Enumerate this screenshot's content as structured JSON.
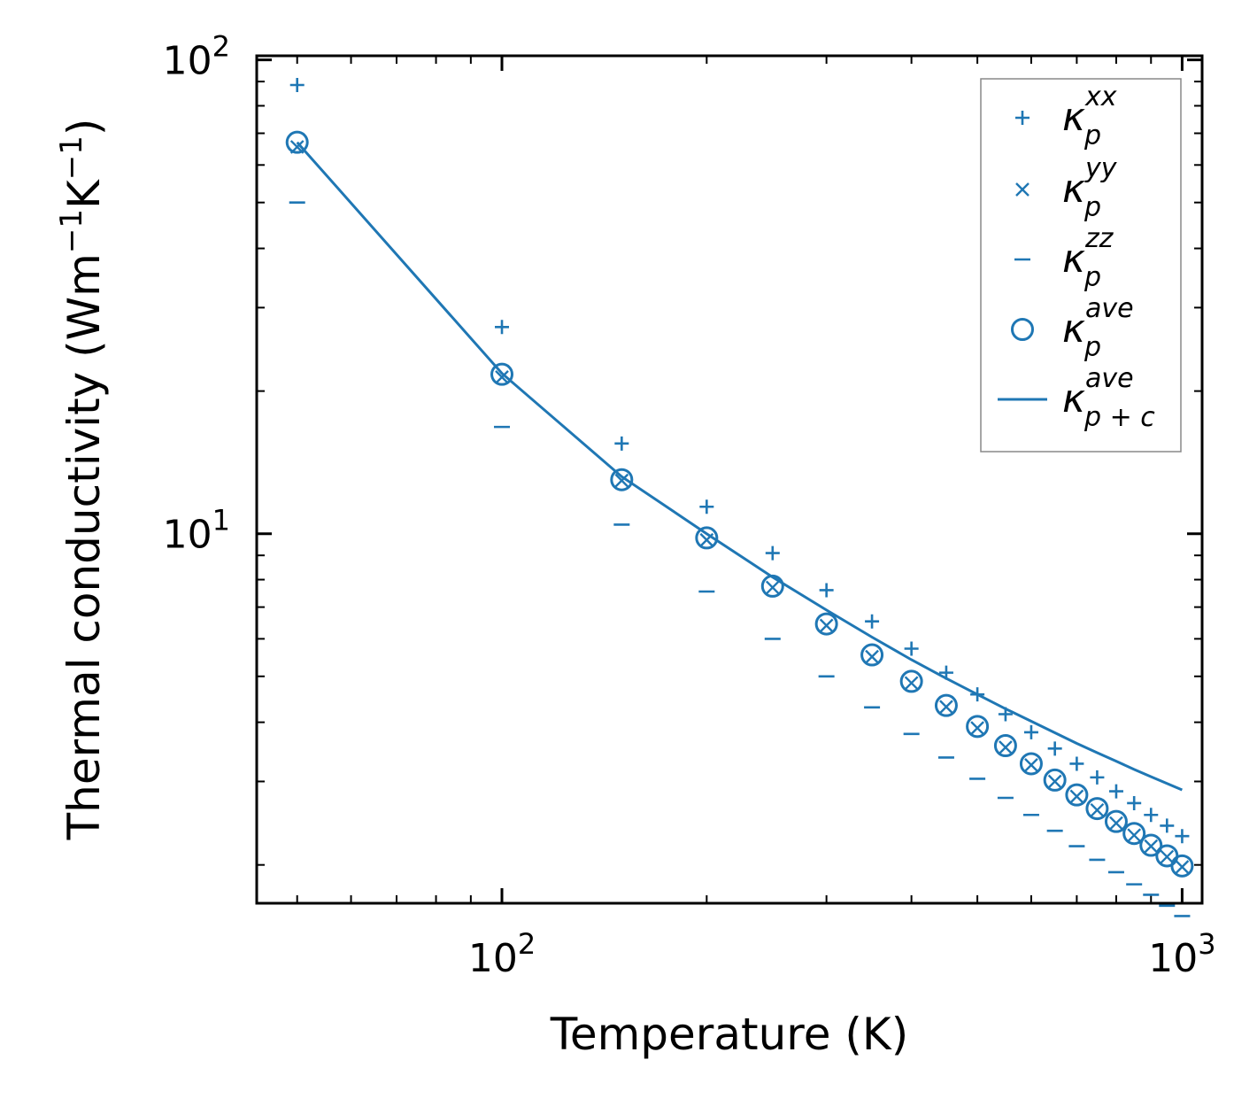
{
  "chart_data": {
    "type": "scatter",
    "title": "",
    "xlabel": "Temperature (K)",
    "ylabel": "Thermal conductivity (Wm$^{-1}$K$^{-1}$)",
    "ylabel_parts": {
      "prefix": "Thermal conductivity (Wm",
      "exp1": "−1",
      "mid": "K",
      "exp2": "−1",
      "suffix": ")"
    },
    "xscale": "log",
    "yscale": "log",
    "xlim": [
      43.6,
      1070
    ],
    "ylim": [
      1.66,
      102
    ],
    "xticks": [
      {
        "base": "10",
        "exp": "2",
        "value": 100
      },
      {
        "base": "10",
        "exp": "3",
        "value": 1000
      }
    ],
    "yticks": [
      {
        "base": "10",
        "exp": "1",
        "value": 10
      },
      {
        "base": "10",
        "exp": "2",
        "value": 100
      }
    ],
    "legend_position": "top-right",
    "color": "#1f77b4",
    "x": [
      50,
      100,
      150,
      200,
      250,
      300,
      350,
      400,
      450,
      500,
      550,
      600,
      650,
      700,
      750,
      800,
      850,
      900,
      950,
      1000
    ],
    "series": [
      {
        "name": "κ_p^xx",
        "label_base": "κ",
        "label_sub": "p",
        "label_sup": "xx",
        "marker": "plus",
        "values": [
          88.5,
          27.3,
          15.5,
          11.4,
          9.1,
          7.6,
          6.53,
          5.72,
          5.09,
          4.58,
          4.16,
          3.81,
          3.52,
          3.27,
          3.06,
          2.86,
          2.7,
          2.55,
          2.42,
          2.3
        ]
      },
      {
        "name": "κ_p^yy",
        "label_base": "κ",
        "label_sub": "p",
        "label_sup": "yy",
        "marker": "x",
        "values": [
          65.5,
          21.4,
          12.95,
          9.7,
          7.7,
          6.4,
          5.5,
          4.84,
          4.31,
          3.89,
          3.54,
          3.25,
          3.0,
          2.79,
          2.61,
          2.45,
          2.31,
          2.19,
          2.08,
          1.98
        ]
      },
      {
        "name": "κ_p^zz",
        "label_base": "κ",
        "label_sub": "p",
        "label_sup": "zz",
        "marker": "minus",
        "values": [
          50.0,
          16.8,
          10.45,
          7.55,
          6.0,
          5.0,
          4.3,
          3.78,
          3.37,
          3.04,
          2.77,
          2.55,
          2.36,
          2.19,
          2.05,
          1.93,
          1.82,
          1.73,
          1.64,
          1.56
        ]
      },
      {
        "name": "κ_p^ave",
        "label_base": "κ",
        "label_sub": "p",
        "label_sup": "ave",
        "marker": "circle",
        "values": [
          67.0,
          21.7,
          13.0,
          9.8,
          7.75,
          6.45,
          5.55,
          4.88,
          4.34,
          3.92,
          3.57,
          3.27,
          3.02,
          2.81,
          2.63,
          2.47,
          2.33,
          2.2,
          2.09,
          1.99
        ]
      },
      {
        "name": "κ_p+c^ave",
        "label_base": "κ",
        "label_sub": "p + c",
        "label_sup": "ave",
        "marker": "line",
        "values": [
          67.0,
          21.8,
          13.2,
          10.0,
          8.1,
          6.9,
          6.05,
          5.42,
          4.95,
          4.58,
          4.27,
          4.02,
          3.8,
          3.61,
          3.45,
          3.31,
          3.18,
          3.07,
          2.97,
          2.88
        ]
      }
    ]
  }
}
